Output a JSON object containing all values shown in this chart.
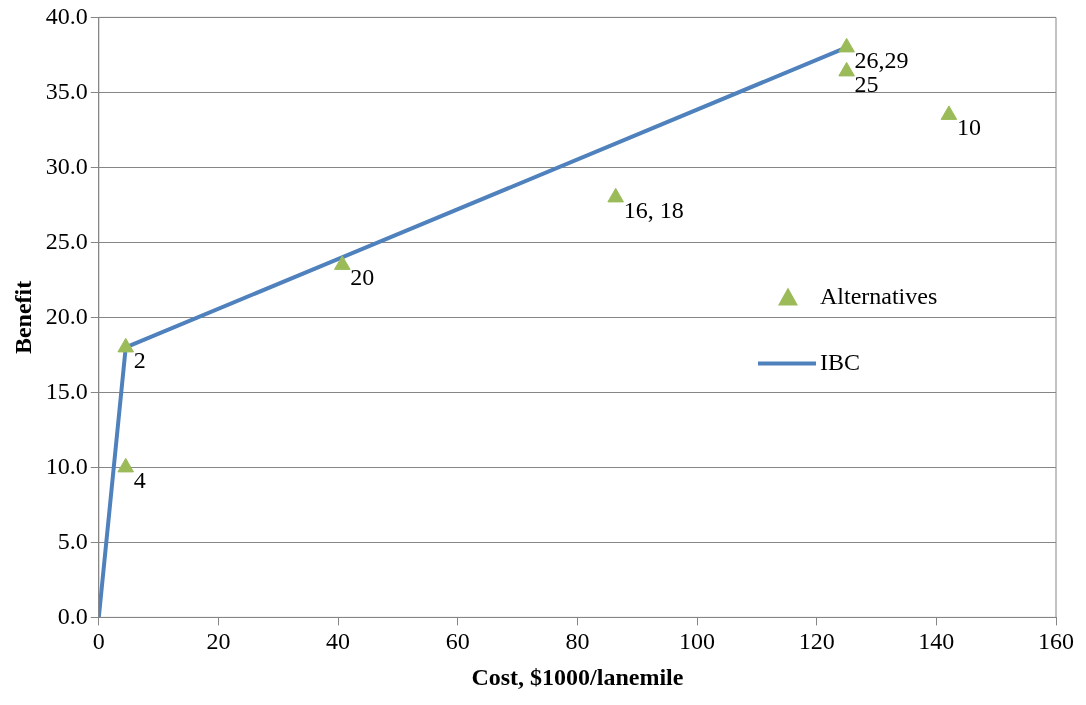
{
  "chart_data": {
    "type": "scatter",
    "xlabel": "Cost, $1000/lanemile",
    "ylabel": "Benefit",
    "xlim": [
      0,
      160
    ],
    "xticks": [
      0,
      20,
      40,
      60,
      80,
      100,
      120,
      140,
      160
    ],
    "ylim": [
      0,
      40
    ],
    "yticks": [
      {
        "value": 0,
        "label": "0.0"
      },
      {
        "value": 5,
        "label": "5.0"
      },
      {
        "value": 10,
        "label": "10.0"
      },
      {
        "value": 15,
        "label": "15.0"
      },
      {
        "value": 20,
        "label": "20.0"
      },
      {
        "value": 25,
        "label": "25.0"
      },
      {
        "value": 30,
        "label": "30.0"
      },
      {
        "value": 35,
        "label": "35.0"
      },
      {
        "value": 40,
        "label": "40.0"
      }
    ],
    "grid": "y",
    "legend": "right",
    "series": [
      {
        "name": "Alternatives",
        "type": "scatter",
        "marker": "triangle",
        "color": "#9bbb59",
        "x": [
          4.5,
          4.5,
          40.7,
          86.4,
          125,
          125,
          142.1
        ],
        "values": [
          18,
          10,
          23.5,
          28,
          38,
          36.4,
          33.5
        ]
      },
      {
        "name": "IBC",
        "type": "line",
        "marker": "none",
        "color": "#4f81bd",
        "x": [
          0,
          4.5,
          125
        ],
        "values": [
          0,
          18,
          38
        ]
      }
    ],
    "annotations": [
      {
        "text": "2",
        "x": 4.5,
        "y": 18
      },
      {
        "text": "4",
        "x": 4.5,
        "y": 10
      },
      {
        "text": "20",
        "x": 40.7,
        "y": 23.5
      },
      {
        "text": "16, 18",
        "x": 86.4,
        "y": 28
      },
      {
        "text": "26,29",
        "x": 125,
        "y": 38
      },
      {
        "text": "25",
        "x": 125,
        "y": 36.4
      },
      {
        "text": "10",
        "x": 142.1,
        "y": 33.5
      }
    ]
  }
}
